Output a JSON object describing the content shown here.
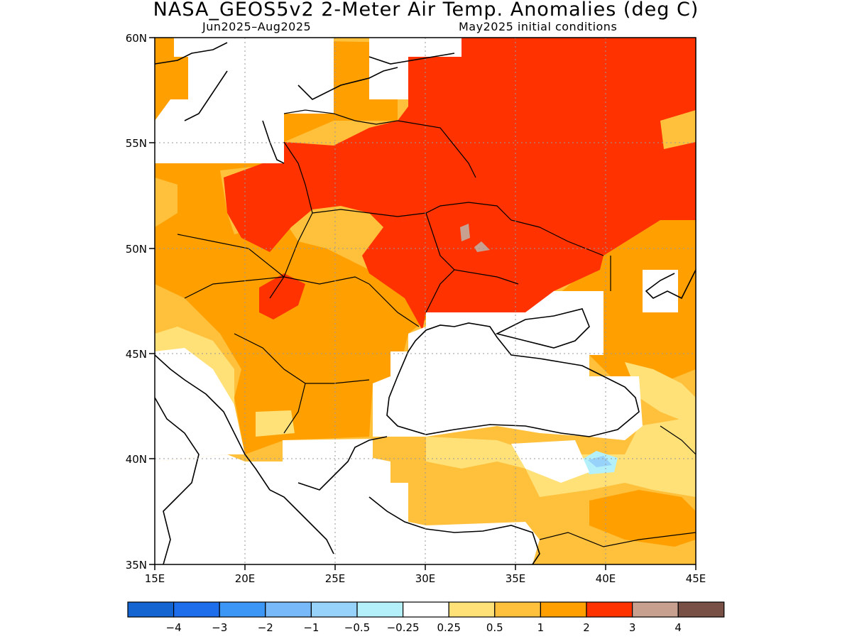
{
  "map": {
    "title": "NASA_GEOS5v2 2-Meter Air Temp. Anomalies (deg C)",
    "subtitle_left": "Jun2025–Aug2025",
    "subtitle_right": "May2025 initial conditions",
    "lon_range": [
      15,
      45
    ],
    "lat_range": [
      35,
      60
    ],
    "lon_labels": [
      "15E",
      "20E",
      "25E",
      "30E",
      "35E",
      "40E",
      "45E"
    ],
    "lat_labels": [
      "60N",
      "55N",
      "50N",
      "45N",
      "40N",
      "35N"
    ],
    "grid": true
  },
  "legend": {
    "colors": [
      "#1464d2",
      "#1e6eeb",
      "#3c96f5",
      "#78b9fa",
      "#96d2fa",
      "#b4f0fa",
      "#ffffff",
      "#ffe178",
      "#ffc03c",
      "#ffa000",
      "#ff3200",
      "#c8a090",
      "#785046"
    ],
    "labels": [
      "−4",
      "−3",
      "−2",
      "−1",
      "−0.5",
      "−0.25",
      "0.25",
      "0.5",
      "1",
      "2",
      "3",
      "4"
    ]
  }
}
